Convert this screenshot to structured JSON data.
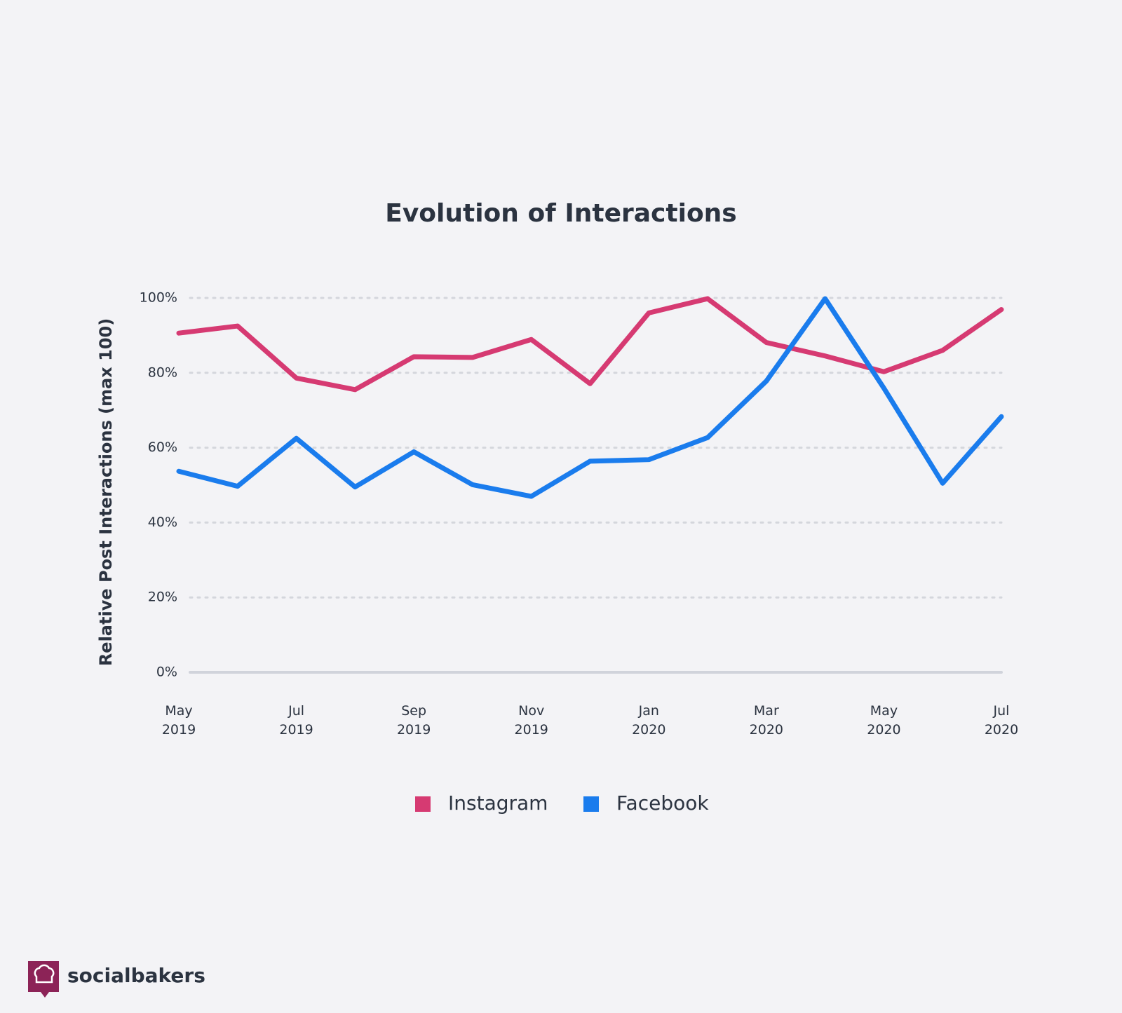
{
  "chart_data": {
    "type": "line",
    "title": "Evolution of Interactions",
    "ylabel": "Relative Post Interactions (max 100)",
    "categories": [
      "May 2019",
      null,
      "Jul 2019",
      null,
      "Sep 2019",
      null,
      "Nov 2019",
      null,
      "Jan 2020",
      null,
      "Mar 2020",
      null,
      "May 2020",
      null,
      "Jul 2020"
    ],
    "series": [
      {
        "name": "Instagram",
        "color": "#d63a72",
        "values": [
          90.6,
          92.5,
          78.6,
          75.5,
          84.3,
          84.1,
          88.9,
          77.1,
          96,
          99.8,
          88.1,
          84.5,
          80.3,
          86,
          96.9
        ]
      },
      {
        "name": "Facebook",
        "color": "#1a7ced",
        "values": [
          53.7,
          49.7,
          62.5,
          49.5,
          58.9,
          50.1,
          47,
          56.4,
          56.8,
          62.7,
          77.8,
          99.8,
          75.9,
          50.5,
          68.3
        ]
      }
    ],
    "ylim": [
      0,
      100
    ],
    "yticks": [
      {
        "value": 0,
        "label": "0%"
      },
      {
        "value": 20,
        "label": "20%"
      },
      {
        "value": 40,
        "label": "40%"
      },
      {
        "value": 60,
        "label": "60%"
      },
      {
        "value": 80,
        "label": "80%"
      },
      {
        "value": 100,
        "label": "100%"
      }
    ],
    "grid": true,
    "legend": "bottom"
  },
  "brand": "socialbakers"
}
